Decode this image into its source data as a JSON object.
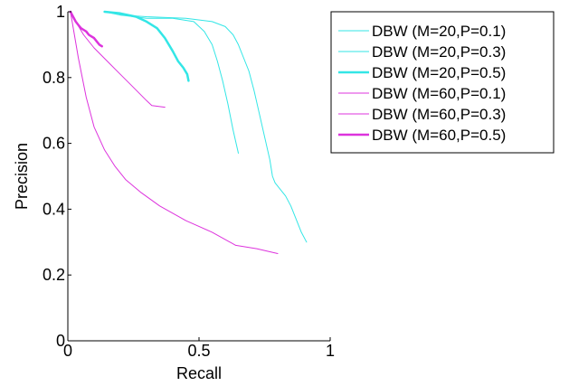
{
  "chart_data": {
    "type": "line",
    "xlabel": "Recall",
    "ylabel": "Precision",
    "xlim": [
      0,
      1
    ],
    "ylim": [
      0,
      1
    ],
    "xticks": [
      0,
      0.5,
      1
    ],
    "xtick_labels": [
      "0",
      "0.5",
      "1"
    ],
    "yticks": [
      0,
      0.2,
      0.4,
      0.6,
      0.8,
      1
    ],
    "ytick_labels": [
      "0",
      "0.2",
      "0.4",
      "0.6",
      "0.8",
      "1"
    ],
    "grid": false,
    "legend_position": "outside-top-right",
    "series": [
      {
        "name": "DBW (M=20,P=0.1)",
        "color": "#33e6e6",
        "line_width": 1,
        "x": [
          0.14,
          0.2,
          0.3,
          0.45,
          0.55,
          0.6,
          0.63,
          0.65,
          0.67,
          0.69,
          0.71,
          0.73,
          0.75,
          0.77,
          0.78,
          0.79,
          0.81,
          0.83,
          0.85,
          0.87,
          0.89,
          0.91
        ],
        "y": [
          1.0,
          0.99,
          0.985,
          0.98,
          0.97,
          0.955,
          0.93,
          0.9,
          0.86,
          0.82,
          0.76,
          0.69,
          0.62,
          0.55,
          0.5,
          0.48,
          0.46,
          0.44,
          0.41,
          0.37,
          0.33,
          0.3
        ]
      },
      {
        "name": "DBW (M=20,P=0.3)",
        "color": "#33e6e6",
        "line_width": 1,
        "x": [
          0.2,
          0.3,
          0.4,
          0.48,
          0.52,
          0.55,
          0.57,
          0.59,
          0.61,
          0.63,
          0.65
        ],
        "y": [
          0.99,
          0.98,
          0.98,
          0.97,
          0.94,
          0.9,
          0.85,
          0.79,
          0.72,
          0.64,
          0.57
        ]
      },
      {
        "name": "DBW (M=20,P=0.5)",
        "color": "#33e6e6",
        "line_width": 2.5,
        "x": [
          0.14,
          0.2,
          0.26,
          0.3,
          0.34,
          0.37,
          0.4,
          0.42,
          0.44,
          0.455,
          0.46
        ],
        "y": [
          1.0,
          0.995,
          0.985,
          0.97,
          0.95,
          0.92,
          0.88,
          0.85,
          0.83,
          0.81,
          0.79
        ]
      },
      {
        "name": "DBW (M=60,P=0.1)",
        "color": "#dd33dd",
        "line_width": 1,
        "x": [
          0.01,
          0.04,
          0.07,
          0.1,
          0.14,
          0.18,
          0.22,
          0.28,
          0.35,
          0.45,
          0.55,
          0.64,
          0.72,
          0.8
        ],
        "y": [
          1.0,
          0.86,
          0.74,
          0.65,
          0.58,
          0.53,
          0.49,
          0.45,
          0.41,
          0.365,
          0.33,
          0.29,
          0.28,
          0.265
        ]
      },
      {
        "name": "DBW (M=60,P=0.3)",
        "color": "#dd33dd",
        "line_width": 1,
        "x": [
          0.01,
          0.03,
          0.06,
          0.1,
          0.15,
          0.2,
          0.25,
          0.3,
          0.32,
          0.37
        ],
        "y": [
          1.0,
          0.97,
          0.93,
          0.89,
          0.85,
          0.81,
          0.77,
          0.73,
          0.715,
          0.71
        ]
      },
      {
        "name": "DBW (M=60,P=0.5)",
        "color": "#dd33dd",
        "line_width": 2.5,
        "x": [
          0.01,
          0.02,
          0.03,
          0.04,
          0.05,
          0.06,
          0.07,
          0.08,
          0.09,
          0.1,
          0.11,
          0.12,
          0.13
        ],
        "y": [
          1.0,
          0.985,
          0.97,
          0.96,
          0.95,
          0.945,
          0.94,
          0.93,
          0.925,
          0.92,
          0.91,
          0.9,
          0.895
        ]
      }
    ]
  }
}
